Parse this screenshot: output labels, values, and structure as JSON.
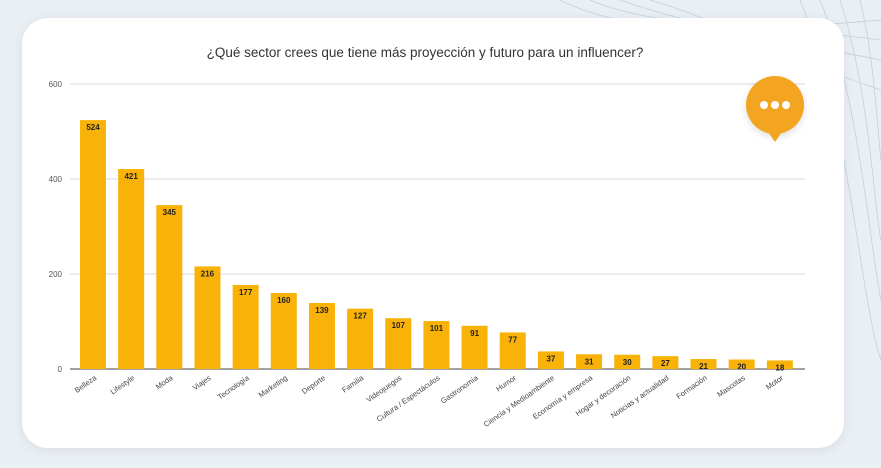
{
  "colors": {
    "bar": "#f9b208",
    "accent": "#f3a521",
    "grid": "#cccccc",
    "axis": "#444444"
  },
  "chart_data": {
    "type": "bar",
    "title": "¿Qué sector crees que tiene más proyección y futuro para un influencer?",
    "xlabel": "",
    "ylabel": "",
    "ylim": [
      0,
      600
    ],
    "yticks": [
      0,
      200,
      400,
      600
    ],
    "grid": true,
    "categories": [
      "Belleza",
      "Lifestyle",
      "Moda",
      "Viajes",
      "Tecnología",
      "Marketing",
      "Deporte",
      "Familia",
      "Videojuegos",
      "Cultura / Espectáculos",
      "Gastronomía",
      "Humor",
      "Ciencia y Medioambiente",
      "Economía y empresa",
      "Hogar y decoración",
      "Noticias y actualidad",
      "Formación",
      "Mascotas",
      "Motor"
    ],
    "values": [
      524,
      421,
      345,
      216,
      177,
      160,
      139,
      127,
      107,
      101,
      91,
      77,
      37,
      31,
      30,
      27,
      21,
      20,
      18
    ]
  }
}
